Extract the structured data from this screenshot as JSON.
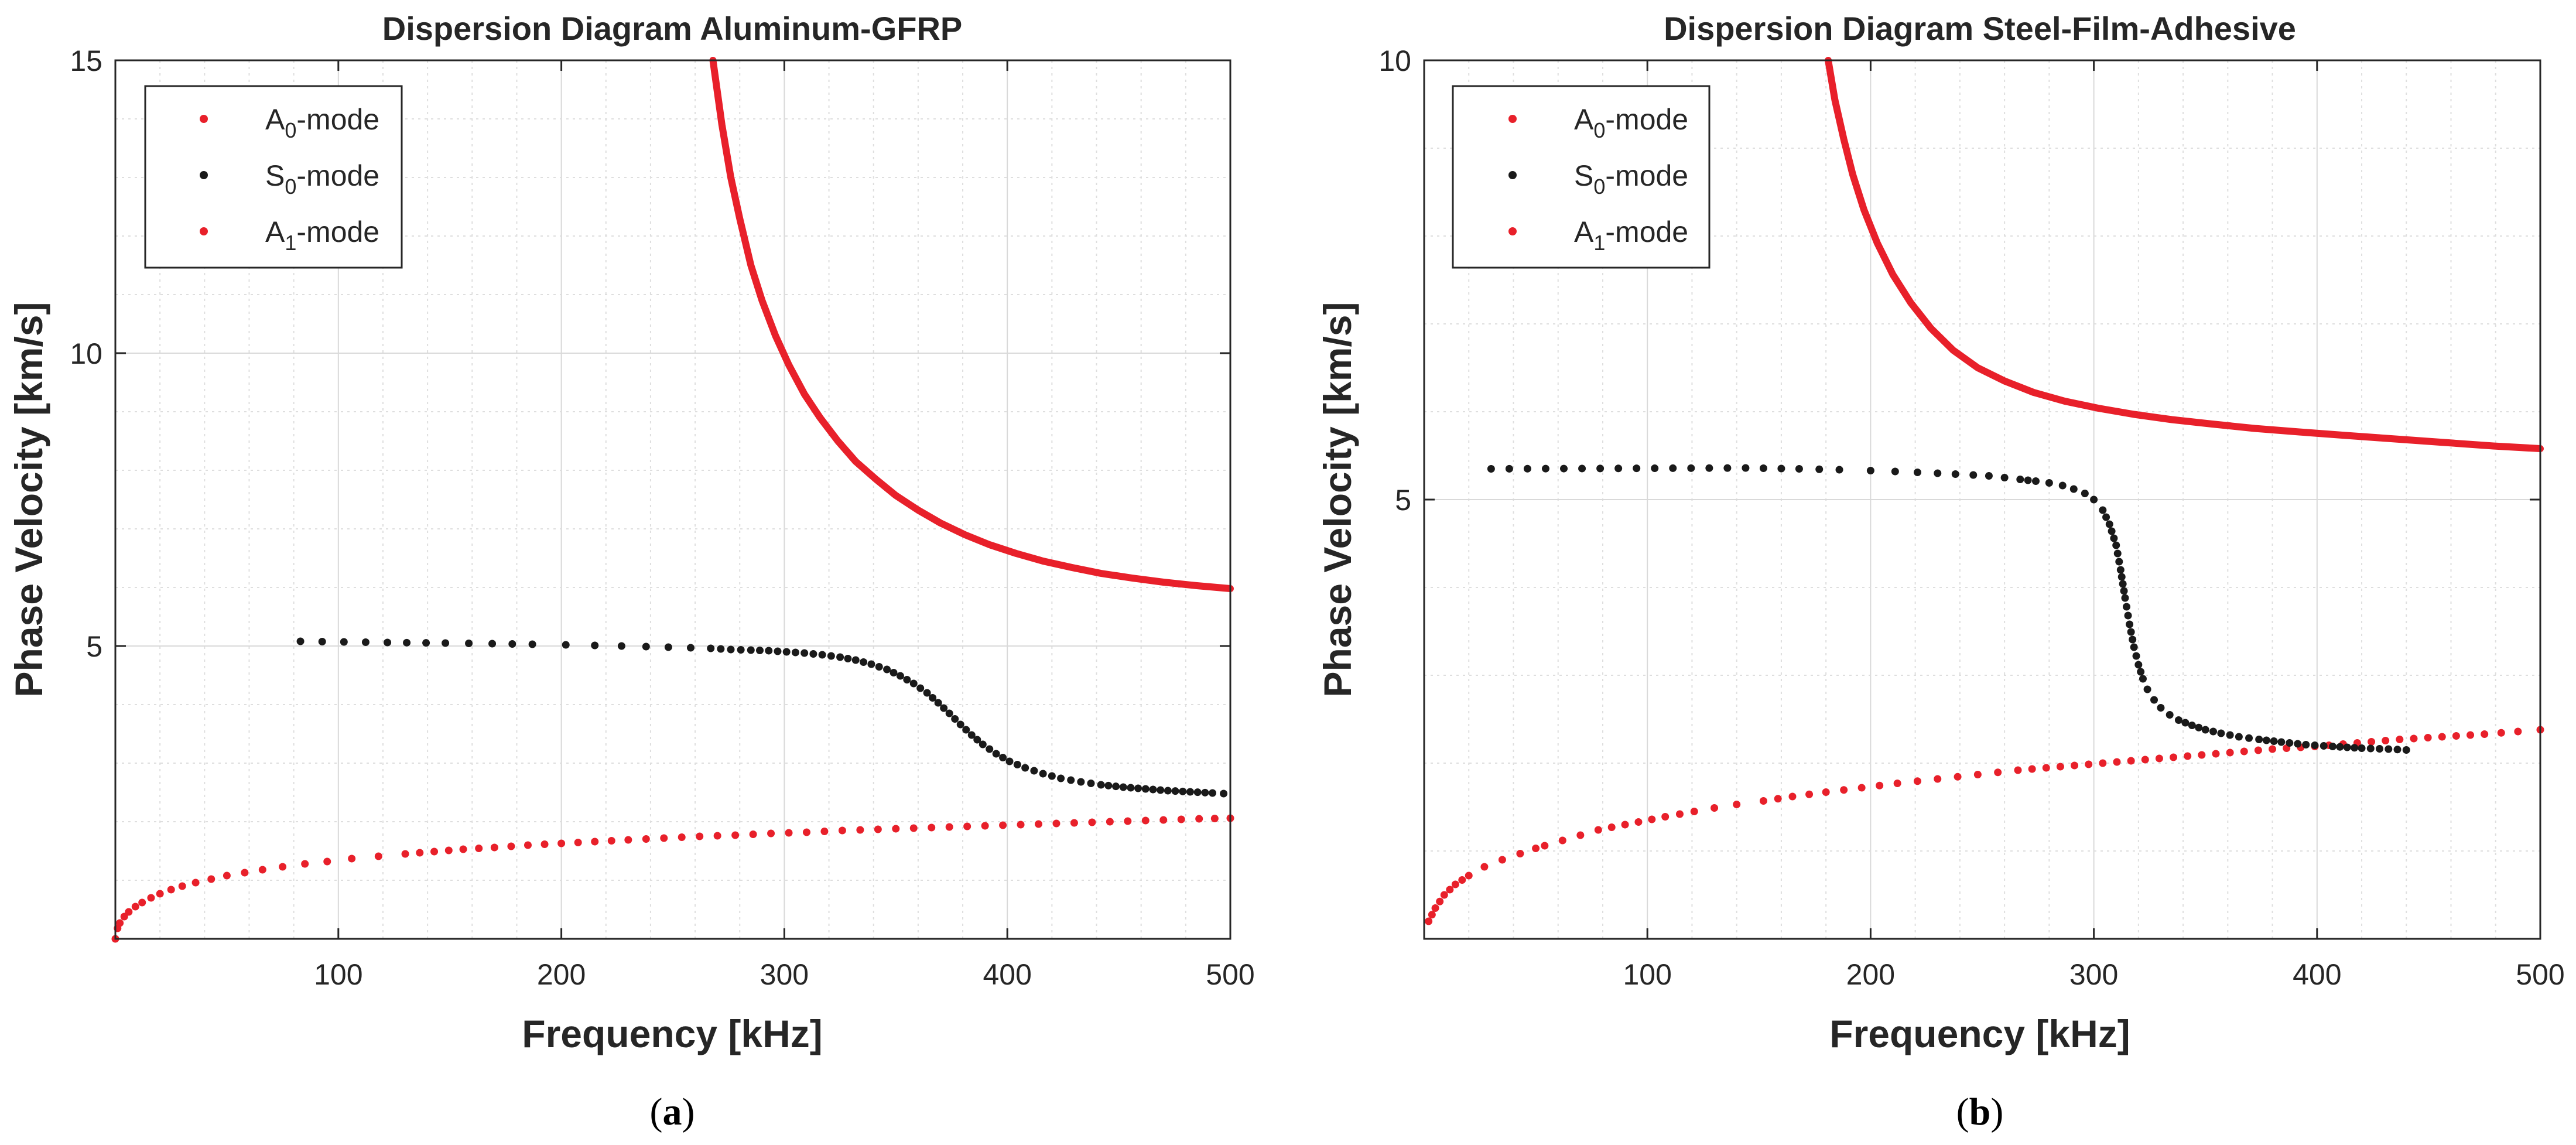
{
  "chart_data": [
    {
      "panel_label": "a",
      "type": "scatter",
      "title": "Dispersion Diagram Aluminum-GFRP",
      "xlabel": "Frequency [kHz]",
      "ylabel": "Phase Velocity [km/s]",
      "xlim": [
        0,
        500
      ],
      "ylim": [
        0,
        15
      ],
      "xticks": [
        100,
        200,
        300,
        400,
        500
      ],
      "yticks": [
        5,
        10,
        15
      ],
      "grid": true,
      "minor_grid": true,
      "legend_position": "top-left",
      "series": [
        {
          "name_base": "A",
          "name_sub": "0",
          "name_suffix": "-mode",
          "color": "#e8202a",
          "x": [
            0,
            1,
            2,
            4,
            6,
            9,
            12,
            16,
            20,
            25,
            30,
            36,
            43,
            50,
            58,
            66,
            75,
            85,
            95,
            106,
            118,
            130,
            143,
            156,
            170,
            185,
            200,
            215,
            230,
            246,
            262,
            278,
            294,
            310,
            326,
            342,
            358,
            374,
            390,
            406,
            422,
            438,
            454,
            470,
            486,
            500
          ],
          "y": [
            0.0,
            0.18,
            0.27,
            0.38,
            0.46,
            0.55,
            0.62,
            0.7,
            0.77,
            0.84,
            0.9,
            0.96,
            1.02,
            1.08,
            1.13,
            1.18,
            1.23,
            1.28,
            1.32,
            1.37,
            1.41,
            1.45,
            1.49,
            1.53,
            1.56,
            1.6,
            1.63,
            1.66,
            1.69,
            1.72,
            1.75,
            1.77,
            1.8,
            1.82,
            1.85,
            1.87,
            1.89,
            1.91,
            1.93,
            1.95,
            1.97,
            1.99,
            2.01,
            2.03,
            2.05,
            2.06
          ]
        },
        {
          "name_base": "S",
          "name_sub": "0",
          "name_suffix": "-mode",
          "color": "#1a1a1a",
          "x": [
            83,
            122,
            148,
            169,
            187,
            202,
            215,
            227,
            238,
            248,
            258,
            267,
            276,
            285,
            293,
            301,
            309,
            317,
            325,
            332,
            339,
            346,
            352,
            358,
            364,
            369,
            374,
            379,
            384,
            389,
            395,
            401,
            408,
            416,
            424,
            433,
            442,
            452,
            462,
            472,
            482,
            492,
            497
          ],
          "y": [
            5.08,
            5.06,
            5.05,
            5.04,
            5.03,
            5.02,
            5.01,
            5.0,
            4.99,
            4.98,
            4.97,
            4.96,
            4.94,
            4.93,
            4.92,
            4.9,
            4.88,
            4.85,
            4.81,
            4.76,
            4.69,
            4.6,
            4.49,
            4.36,
            4.2,
            4.03,
            3.85,
            3.66,
            3.48,
            3.32,
            3.16,
            3.03,
            2.92,
            2.82,
            2.74,
            2.68,
            2.63,
            2.59,
            2.56,
            2.53,
            2.51,
            2.49,
            2.48
          ]
        },
        {
          "name_base": "A",
          "name_sub": "1",
          "name_suffix": "-mode",
          "color": "#e8202a",
          "x": [
            268,
            272,
            276,
            280,
            285,
            290,
            296,
            302,
            309,
            316,
            324,
            332,
            341,
            350,
            360,
            370,
            381,
            392,
            404,
            416,
            429,
            442,
            456,
            470,
            485,
            500
          ],
          "y": [
            15.0,
            13.9,
            13.0,
            12.3,
            11.5,
            10.9,
            10.3,
            9.8,
            9.3,
            8.9,
            8.5,
            8.15,
            7.85,
            7.57,
            7.32,
            7.1,
            6.9,
            6.73,
            6.58,
            6.45,
            6.34,
            6.24,
            6.16,
            6.09,
            6.03,
            5.98
          ]
        }
      ]
    },
    {
      "panel_label": "b",
      "type": "scatter",
      "title": "Dispersion Diagram Steel-Film-Adhesive",
      "xlabel": "Frequency [kHz]",
      "ylabel": "Phase Velocity [km/s]",
      "xlim": [
        0,
        500
      ],
      "ylim": [
        0,
        10
      ],
      "xticks": [
        100,
        200,
        300,
        400,
        500
      ],
      "yticks": [
        5,
        10
      ],
      "grid": true,
      "minor_grid": true,
      "legend_position": "top-left",
      "series": [
        {
          "name_base": "A",
          "name_sub": "0",
          "name_suffix": "-mode",
          "color": "#e8202a",
          "x": [
            2,
            5,
            9,
            14,
            20,
            27,
            35,
            43,
            50,
            54,
            78,
            84,
            90,
            96,
            102,
            108,
            121,
            130,
            140,
            152,
            165,
            180,
            196,
            212,
            230,
            248,
            266,
            285,
            304,
            323,
            342,
            361,
            380,
            399,
            418,
            437,
            456,
            475,
            490,
            500
          ],
          "y": [
            0.2,
            0.35,
            0.5,
            0.62,
            0.72,
            0.82,
            0.9,
            0.97,
            1.03,
            1.06,
            1.24,
            1.27,
            1.3,
            1.33,
            1.36,
            1.39,
            1.45,
            1.49,
            1.53,
            1.57,
            1.62,
            1.67,
            1.72,
            1.77,
            1.82,
            1.87,
            1.92,
            1.96,
            2.0,
            2.04,
            2.08,
            2.12,
            2.16,
            2.19,
            2.23,
            2.27,
            2.3,
            2.33,
            2.36,
            2.38
          ]
        },
        {
          "name_base": "S",
          "name_sub": "0",
          "name_suffix": "-mode",
          "color": "#1a1a1a",
          "x": [
            30,
            144,
            168,
            186,
            200,
            211,
            221,
            230,
            238,
            246,
            253,
            260,
            267,
            274,
            280,
            286,
            291,
            296,
            300,
            304,
            307,
            310,
            312,
            314,
            316,
            318,
            320,
            322,
            324,
            327,
            330,
            334,
            338,
            344,
            350,
            357,
            365,
            374,
            384,
            395,
            407,
            420,
            432,
            440
          ],
          "y": [
            5.35,
            5.36,
            5.35,
            5.34,
            5.33,
            5.32,
            5.31,
            5.3,
            5.29,
            5.28,
            5.27,
            5.25,
            5.23,
            5.21,
            5.19,
            5.16,
            5.12,
            5.07,
            5.0,
            4.88,
            4.72,
            4.48,
            4.2,
            3.88,
            3.58,
            3.32,
            3.12,
            2.96,
            2.84,
            2.72,
            2.63,
            2.55,
            2.49,
            2.43,
            2.38,
            2.34,
            2.3,
            2.27,
            2.24,
            2.21,
            2.19,
            2.17,
            2.16,
            2.15
          ]
        },
        {
          "name_base": "A",
          "name_sub": "1",
          "name_suffix": "-mode",
          "color": "#e8202a",
          "x": [
            181,
            184,
            188,
            192,
            197,
            203,
            210,
            218,
            227,
            237,
            248,
            260,
            273,
            287,
            302,
            318,
            335,
            353,
            372,
            392,
            413,
            435,
            457,
            479,
            500
          ],
          "y": [
            10.0,
            9.55,
            9.1,
            8.7,
            8.3,
            7.92,
            7.56,
            7.24,
            6.95,
            6.7,
            6.5,
            6.35,
            6.22,
            6.12,
            6.04,
            5.97,
            5.91,
            5.86,
            5.81,
            5.77,
            5.73,
            5.69,
            5.65,
            5.61,
            5.58
          ]
        }
      ]
    }
  ]
}
